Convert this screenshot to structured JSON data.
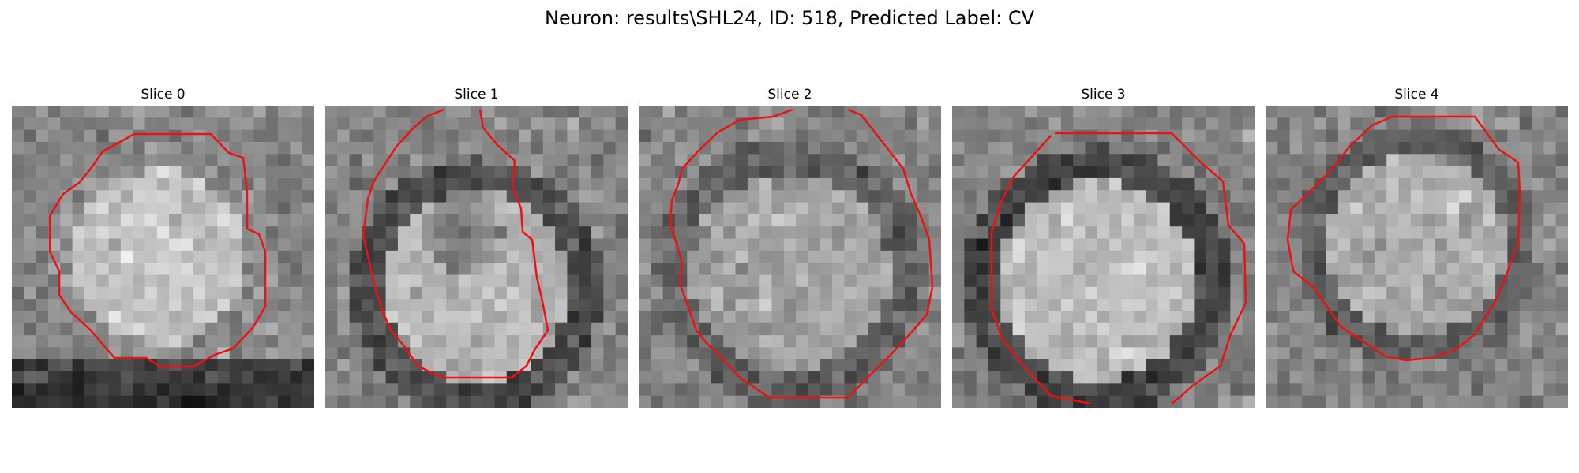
{
  "figure": {
    "title": "Neuron: results\\SHL24, ID: 518, Predicted Label: CV"
  },
  "contour_color": "#ee1111",
  "slices": [
    {
      "label": "Slice 0"
    },
    {
      "label": "Slice 1"
    },
    {
      "label": "Slice 2"
    },
    {
      "label": "Slice 3"
    },
    {
      "label": "Slice 4"
    }
  ]
}
